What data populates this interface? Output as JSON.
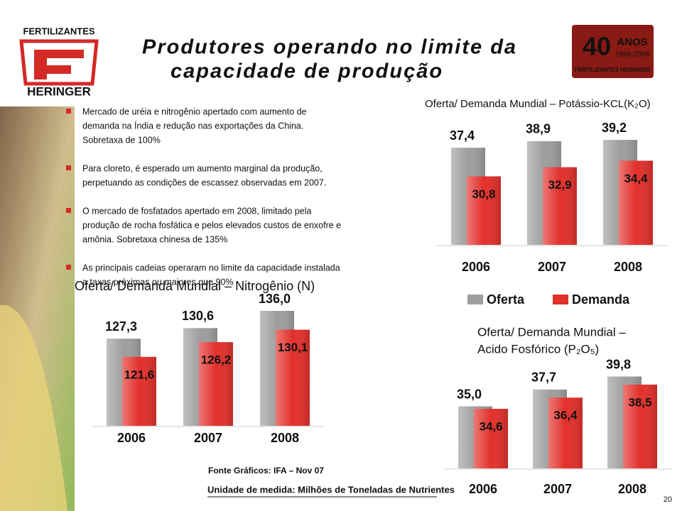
{
  "header": {
    "brand_top": "FERTILIZANTES",
    "brand_bottom": "HERINGER",
    "title_lines": [
      "Produtores operando no limite da",
      "capacidade de produção"
    ],
    "badge_number": "40",
    "badge_word": "ANOS",
    "badge_years": "1968-2008",
    "badge_brand": "FERTILIZANTES HERINGER"
  },
  "bullets": [
    [
      "Mercado de uréia e nitrogênio apertado com aumento de",
      "demanda  na Índia e redução nas exportações da China.",
      "Sobretaxa de 100%"
    ],
    [
      "Para cloreto, é esperado um aumento marginal da produção,",
      "perpetuando as condições de escassez observadas em 2007."
    ],
    [
      "O mercado de fosfatados apertado em 2008, limitado pela",
      "produção de rocha fosfática e pelos elevados custos de enxofre e",
      "amônia. Sobretaxa chinesa de 135%"
    ],
    [
      "As principais cadeias operaram no limite da capacidade instalada",
      "a taxas próximas ou maiores que 90%"
    ]
  ],
  "chart_data": [
    {
      "type": "bar",
      "title": [
        "Oferta/ Demanda Mundial – Nitrogênio (N)"
      ],
      "categories": [
        "2006",
        "2007",
        "2008"
      ],
      "ylim": [
        100,
        140
      ],
      "series": [
        {
          "name": "Oferta",
          "color": "#9e9e9e",
          "values": [
            127.3,
            130.6,
            136.0
          ],
          "value_labels": [
            "127,3",
            "130,6",
            "136,0"
          ]
        },
        {
          "name": "Demanda",
          "color": "#e2302b",
          "values": [
            121.6,
            126.2,
            130.1
          ],
          "value_labels": [
            "121,6",
            "126,2",
            "130,1"
          ]
        }
      ]
    },
    {
      "type": "bar",
      "title": [
        "Oferta/ Demanda Mundial – Potássio-KCL(K₂O)"
      ],
      "categories": [
        "2006",
        "2007",
        "2008"
      ],
      "ylim": [
        15,
        42
      ],
      "legend": "bottom",
      "series": [
        {
          "name": "Oferta",
          "color": "#9e9e9e",
          "values": [
            37.4,
            38.9,
            39.2
          ],
          "value_labels": [
            "37,4",
            "38,9",
            "39,2"
          ]
        },
        {
          "name": "Demanda",
          "color": "#e2302b",
          "values": [
            30.8,
            32.9,
            34.4
          ],
          "value_labels": [
            "30,8",
            "32,9",
            "34,4"
          ]
        }
      ]
    },
    {
      "type": "bar",
      "title": [
        "Oferta/ Demanda Mundial –",
        "Acido Fosfórico (P₂O₅)"
      ],
      "categories": [
        "2006",
        "2007",
        "2008"
      ],
      "ylim": [
        25,
        41
      ],
      "series": [
        {
          "name": "Oferta",
          "color": "#9e9e9e",
          "values": [
            35.0,
            37.7,
            39.8
          ],
          "value_labels": [
            "35,0",
            "37,7",
            "39,8"
          ]
        },
        {
          "name": "Demanda",
          "color": "#e2302b",
          "values": [
            34.6,
            36.4,
            38.5
          ],
          "value_labels": [
            "34,6",
            "36,4",
            "38,5"
          ]
        }
      ]
    }
  ],
  "footer": {
    "source": "Fonte Gráficos: IFA – Nov 07",
    "unit": "Unidade de medida: Milhões de Toneladas de Nutrientes",
    "page": "20"
  }
}
